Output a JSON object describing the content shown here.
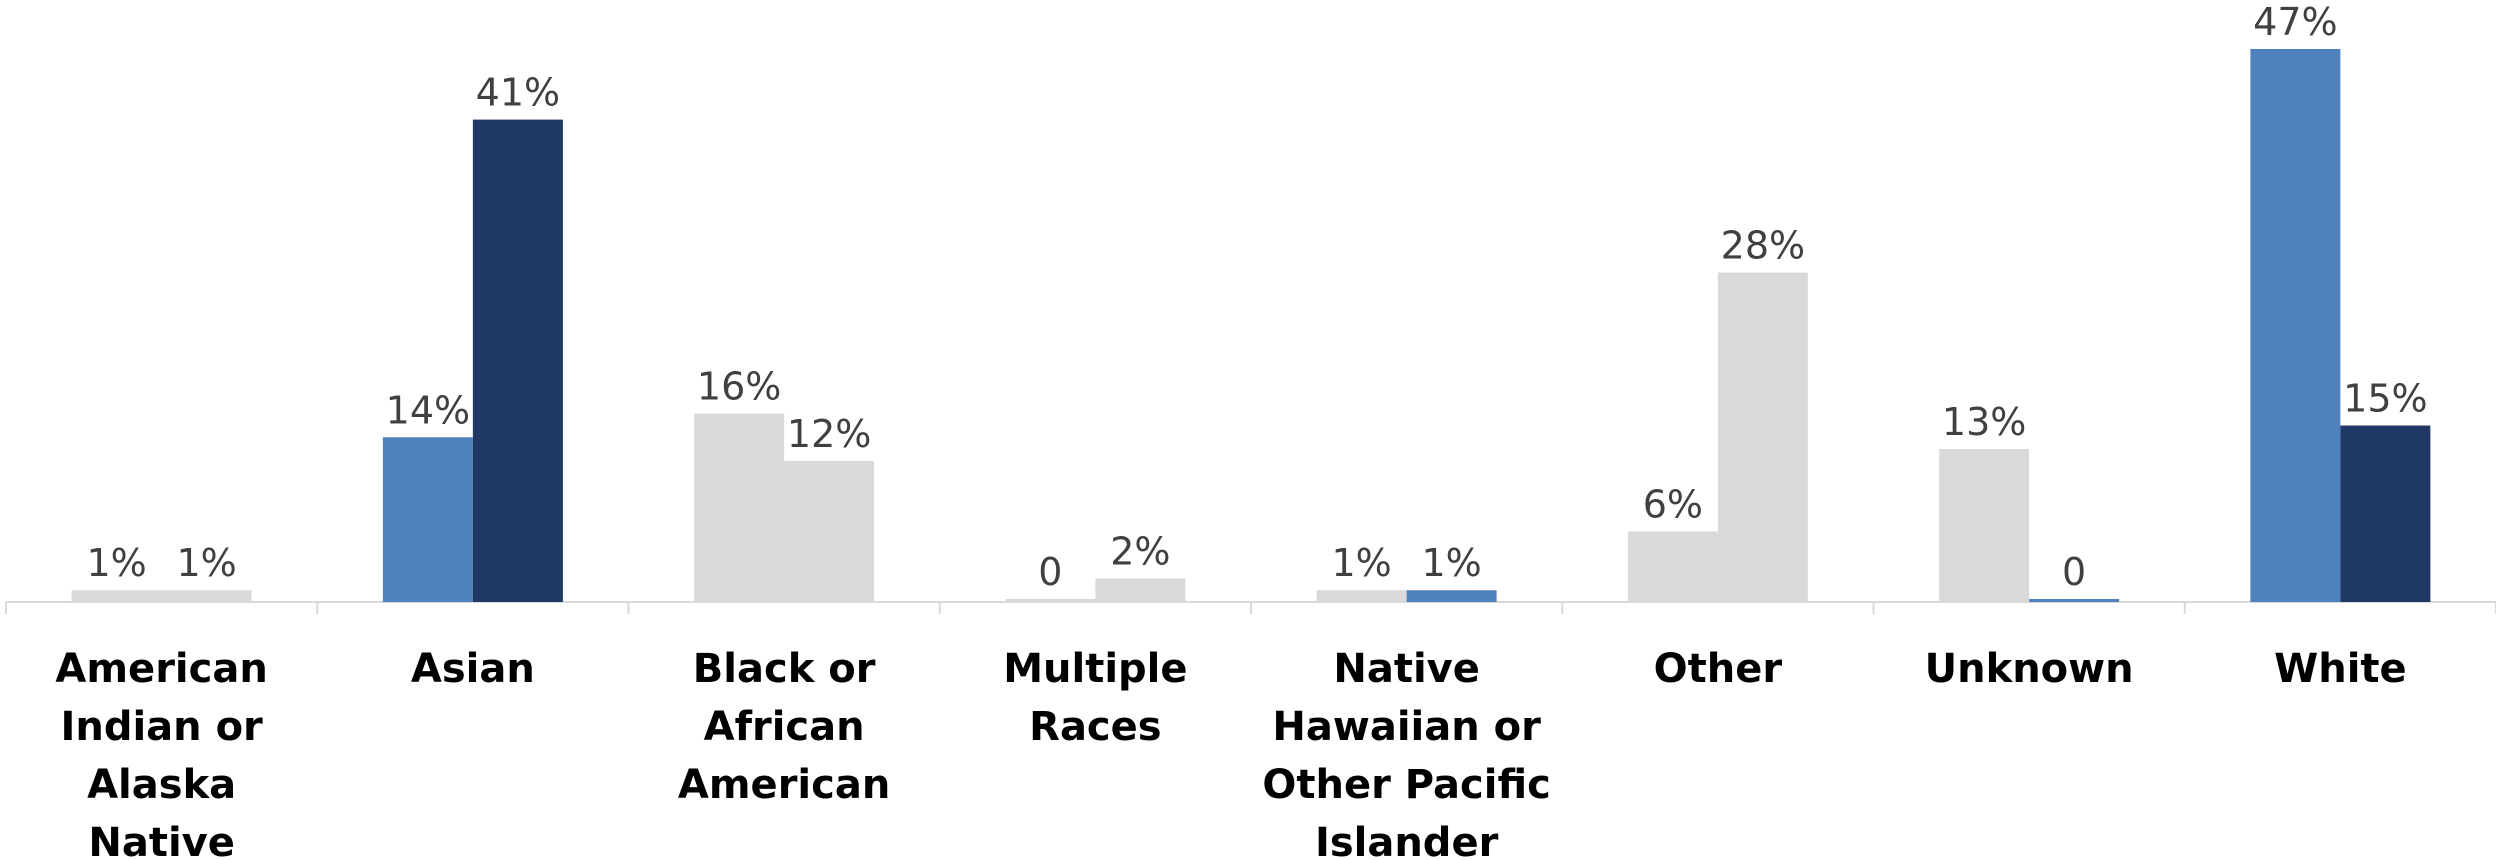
{
  "chart_data": {
    "type": "bar",
    "categories": [
      "American Indian or Alaska Native",
      "Asian",
      "Black or African American",
      "Multiple Races",
      "Native Hawaiian or Other Pacific Islander",
      "Other",
      "Unknown",
      "White"
    ],
    "series": [
      {
        "colors": [
          "#d9d9d9",
          "#4f81bd",
          "#d9d9d9",
          "#d9d9d9",
          "#d9d9d9",
          "#d9d9d9",
          "#d9d9d9",
          "#4f81bd"
        ],
        "values": [
          1,
          14,
          16,
          0,
          1,
          6,
          13,
          47
        ],
        "value_labels": [
          "1%",
          "14%",
          "16%",
          "0",
          "1%",
          "6%",
          "13%",
          "47%"
        ]
      },
      {
        "colors": [
          "#d9d9d9",
          "#1f3864",
          "#d9d9d9",
          "#d9d9d9",
          "#4f81bd",
          "#d9d9d9",
          "#4f81bd",
          "#1f3864"
        ],
        "values": [
          1,
          41,
          12,
          2,
          1,
          28,
          0,
          15
        ],
        "value_labels": [
          "1%",
          "41%",
          "12%",
          "2%",
          "1%",
          "28%",
          "0",
          "15%"
        ]
      }
    ]
  }
}
